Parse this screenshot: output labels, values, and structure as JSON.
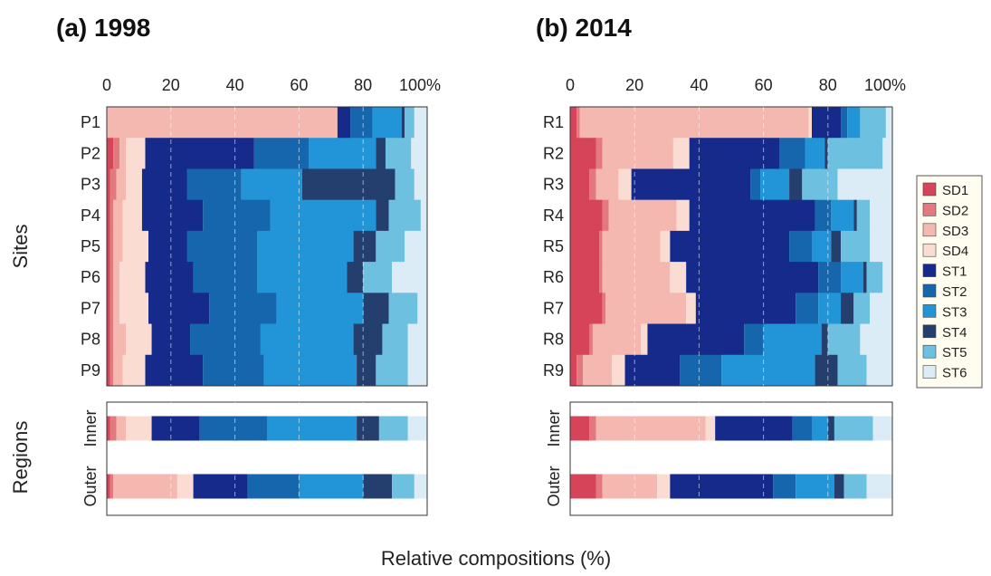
{
  "chart_data": {
    "type": "bar",
    "orientation": "horizontal",
    "stacked": true,
    "xlabel": "Relative compositions (%)",
    "ylabel_top": "Sites",
    "ylabel_bottom": "Regions",
    "xlim": [
      0,
      100
    ],
    "x_ticks": [
      "0",
      "20",
      "40",
      "60",
      "80",
      "100%"
    ],
    "grid": "vertical dashed",
    "legend_position": "right",
    "components": [
      "SD1",
      "SD2",
      "SD3",
      "SD4",
      "ST1",
      "ST2",
      "ST3",
      "ST4",
      "ST5",
      "ST6"
    ],
    "colors": {
      "SD1": "#d6445a",
      "SD2": "#e3797f",
      "SD3": "#f4b8b1",
      "SD4": "#fadcd2",
      "ST1": "#152a8a",
      "ST2": "#1566ad",
      "ST3": "#2195d8",
      "ST4": "#243f6e",
      "ST5": "#6dc0e0",
      "ST6": "#dcecf6"
    },
    "panels": [
      {
        "title": "(a) 1998",
        "sites": [
          {
            "label": "P1",
            "values": [
              0,
              0,
              72,
              0,
              4,
              7,
              9,
              1,
              3,
              4
            ]
          },
          {
            "label": "P2",
            "values": [
              2,
              2,
              2,
              6,
              34,
              17,
              21,
              3,
              8,
              5
            ]
          },
          {
            "label": "P3",
            "values": [
              1,
              2,
              3,
              5,
              14,
              17,
              19,
              29,
              6,
              4
            ]
          },
          {
            "label": "P4",
            "values": [
              1,
              1,
              3,
              6,
              19,
              21,
              33,
              4,
              10,
              2
            ]
          },
          {
            "label": "P5",
            "values": [
              1,
              1,
              3,
              8,
              12,
              22,
              30,
              7,
              9,
              7
            ]
          },
          {
            "label": "P6",
            "values": [
              1,
              1,
              2,
              8,
              15,
              20,
              28,
              5,
              9,
              11
            ]
          },
          {
            "label": "P7",
            "values": [
              1,
              1,
              2,
              9,
              19,
              21,
              27,
              8,
              9,
              3
            ]
          },
          {
            "label": "P8",
            "values": [
              1,
              1,
              4,
              8,
              12,
              22,
              29,
              9,
              8,
              6
            ]
          },
          {
            "label": "P9",
            "values": [
              1,
              1,
              3,
              7,
              18,
              19,
              29,
              6,
              10,
              6
            ]
          }
        ],
        "regions": [
          {
            "label": "Inner",
            "values": [
              1,
              2,
              3,
              8,
              15,
              21,
              28,
              7,
              9,
              6
            ]
          },
          {
            "label": "Outer",
            "values": [
              1,
              1,
              20,
              5,
              17,
              16,
              20,
              9,
              7,
              4
            ]
          }
        ]
      },
      {
        "title": "(b) 2014",
        "sites": [
          {
            "label": "R1",
            "values": [
              2,
              1,
              71,
              1,
              9,
              2,
              4,
              0,
              8,
              2
            ]
          },
          {
            "label": "R2",
            "values": [
              8,
              2,
              22,
              5,
              28,
              8,
              6,
              1,
              17,
              3
            ]
          },
          {
            "label": "R3",
            "values": [
              6,
              2,
              7,
              4,
              37,
              3,
              9,
              4,
              11,
              17
            ]
          },
          {
            "label": "R4",
            "values": [
              10,
              2,
              21,
              4,
              39,
              5,
              7,
              1,
              4,
              7
            ]
          },
          {
            "label": "R5",
            "values": [
              9,
              1,
              18,
              3,
              37,
              7,
              6,
              3,
              9,
              7
            ]
          },
          {
            "label": "R6",
            "values": [
              9,
              1,
              21,
              5,
              41,
              7,
              7,
              1,
              5,
              3
            ]
          },
          {
            "label": "R7",
            "values": [
              10,
              1,
              25,
              3,
              31,
              7,
              7,
              4,
              5,
              7
            ]
          },
          {
            "label": "R8",
            "values": [
              6,
              1,
              15,
              2,
              30,
              6,
              18,
              2,
              10,
              10
            ]
          },
          {
            "label": "R9",
            "values": [
              2,
              2,
              9,
              4,
              17,
              13,
              29,
              7,
              9,
              8
            ]
          }
        ],
        "regions": [
          {
            "label": "Inner",
            "values": [
              6,
              2,
              34,
              3,
              24,
              6,
              5,
              2,
              12,
              6
            ]
          },
          {
            "label": "Outer",
            "values": [
              8,
              2,
              17,
              4,
              32,
              7,
              12,
              3,
              7,
              8
            ]
          }
        ]
      }
    ]
  }
}
